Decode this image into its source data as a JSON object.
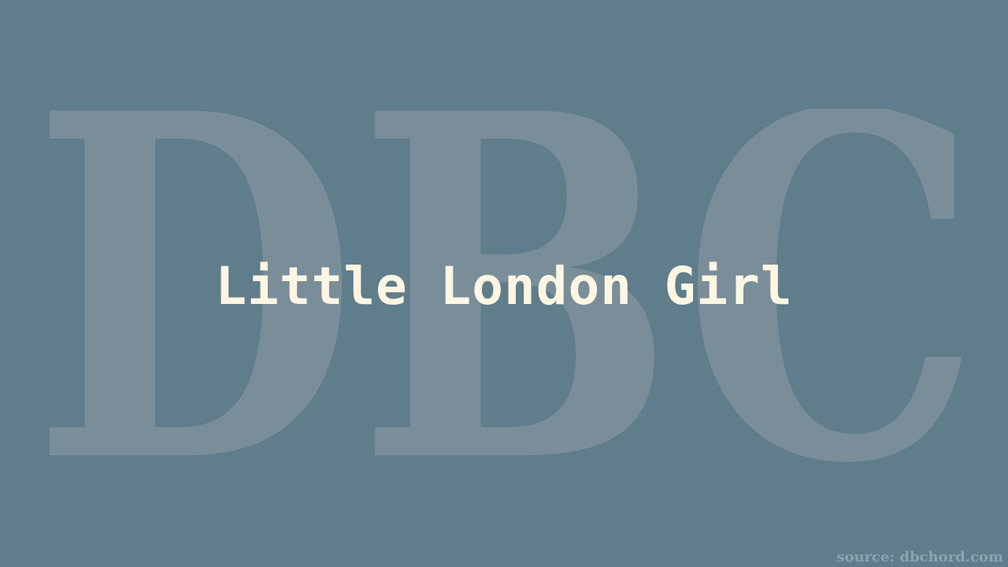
{
  "background_color": "#607d8b",
  "watermark": {
    "text": "DBC",
    "color": "#7a8e9a"
  },
  "title": "Little London Girl",
  "title_color": "#fdf6e3",
  "source_credit": "source: dbchord.com"
}
